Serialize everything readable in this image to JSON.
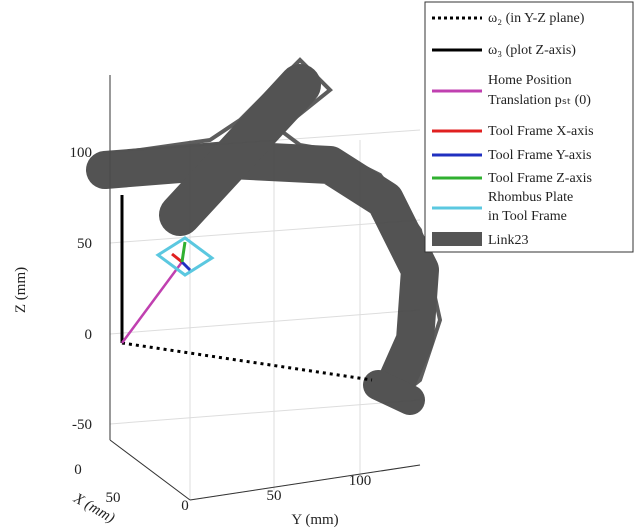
{
  "axes": {
    "z_label": "Z (mm)",
    "y_label": "Y (mm)",
    "x_label": "X (mm)",
    "z_ticks": [
      "100",
      "50",
      "0",
      "-50"
    ],
    "y_ticks": [
      "0",
      "50",
      "100"
    ],
    "x_ticks": [
      "0",
      "50"
    ]
  },
  "legend": [
    {
      "label": "ω₂ (in Y-Z plane)"
    },
    {
      "label": "ω₃ (plot Z-axis)"
    },
    {
      "label": "Home Position",
      "label2": "Translation pₛₜ (0)"
    },
    {
      "label": "Tool Frame X-axis"
    },
    {
      "label": "Tool Frame Y-axis"
    },
    {
      "label": "Tool Frame Z-axis"
    },
    {
      "label": "Rhombus Plate",
      "label2": "in Tool Frame"
    },
    {
      "label": "Link23"
    }
  ]
}
